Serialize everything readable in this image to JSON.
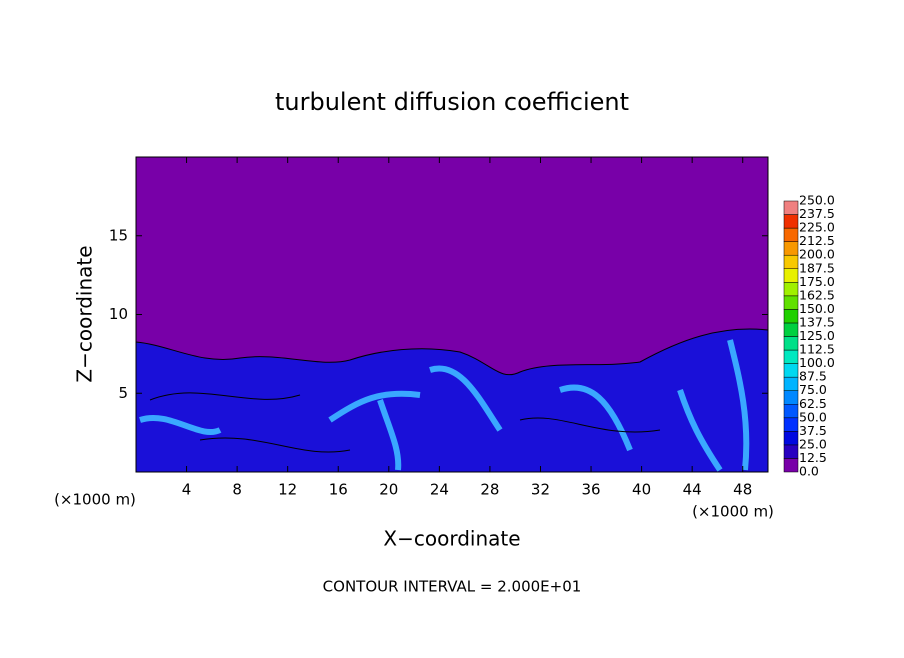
{
  "chart_data": {
    "type": "contour",
    "title": "turbulent diffusion coefficient",
    "x_label": "X−coordinate",
    "y_label": "Z−coordinate",
    "x_unit": "(×1000 m)",
    "footer": "CONTOUR INTERVAL = 2.000E+01",
    "xlim": [
      0,
      50
    ],
    "xticks": [
      4,
      8,
      12,
      16,
      20,
      24,
      28,
      32,
      36,
      40,
      44,
      48
    ],
    "ylim": [
      0,
      20
    ],
    "yticks": [
      5,
      10,
      15
    ],
    "colorbar": {
      "levels": [
        {
          "value": 0,
          "label": "0.0"
        },
        12.5,
        {
          "value": 25,
          "label": "25.0"
        },
        37.5,
        {
          "value": 50,
          "label": "50.0"
        },
        62.5,
        {
          "value": 75,
          "label": "75.0"
        },
        87.5,
        {
          "value": 100,
          "label": "100.0"
        },
        112.5,
        {
          "value": 125,
          "label": "125.0"
        },
        137.5,
        {
          "value": 150,
          "label": "150.0"
        },
        162.5,
        {
          "value": 175,
          "label": "175.0"
        },
        187.5,
        {
          "value": 200,
          "label": "200.0"
        },
        212.5,
        {
          "value": 225,
          "label": "225.0"
        },
        237.5,
        {
          "value": 250,
          "label": "250.0"
        }
      ],
      "colors": [
        "#7800a8",
        "#2800c0",
        "#0008e0",
        "#0030ff",
        "#0058ff",
        "#0088ff",
        "#00b4ff",
        "#00d8f0",
        "#00e8c0",
        "#00e088",
        "#00d040",
        "#20d000",
        "#60e000",
        "#a0f000",
        "#e8f000",
        "#f8c800",
        "#f89800",
        "#f86800",
        "#f03000",
        "#f08080"
      ]
    }
  }
}
